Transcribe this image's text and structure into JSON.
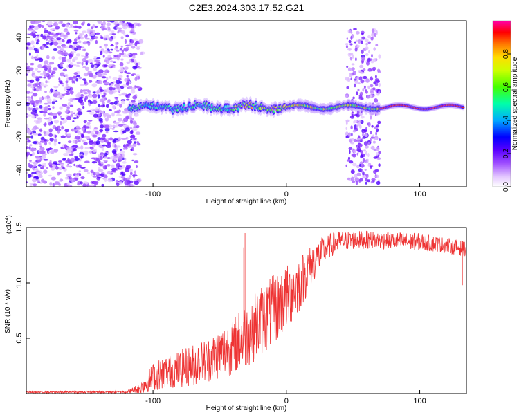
{
  "figure": {
    "title": "C2E3.2024.303.17.52.G21"
  },
  "chart_data": [
    {
      "type": "heatmap",
      "xlabel": "Height of straight line (km)",
      "ylabel": "Frequency (Hz)",
      "xlim": [
        -195,
        135
      ],
      "ylim": [
        -50,
        50
      ],
      "x_ticks": [
        -100,
        0,
        100
      ],
      "y_ticks": [
        -40,
        -20,
        0,
        20,
        40
      ],
      "colorbar": {
        "label": "Normalized spectral amplitude",
        "range": [
          0.0,
          1.0
        ],
        "ticks": [
          0.0,
          0.2,
          0.4,
          0.6,
          0.8
        ],
        "colors": [
          "#ffffff",
          "#b26bff",
          "#7a00ff",
          "#0000ff",
          "#00c8ff",
          "#00ff80",
          "#a0ff00",
          "#ffff00",
          "#ff8000",
          "#ff0000",
          "#ff00b0"
        ]
      },
      "description_regions": [
        {
          "x_range": [
            -195,
            -115
          ],
          "kind": "broadband noise",
          "freq_range": [
            -50,
            50
          ]
        },
        {
          "x_range": [
            -118,
            133
          ],
          "kind": "tone near 0 Hz",
          "center_freq": -2
        },
        {
          "x_range": [
            45,
            70
          ],
          "kind": "scattered noise",
          "freq_range": [
            -48,
            45
          ]
        }
      ],
      "grid": false
    },
    {
      "type": "line",
      "xlabel": "Height of straight line (km)",
      "ylabel": "SNR (10 * v/v)",
      "y_multiplier": "(x10",
      "y_multiplier_exponent": "4",
      "y_multiplier_close": ")",
      "xlim": [
        -195,
        135
      ],
      "ylim": [
        0,
        15000
      ],
      "x_ticks": [
        -100,
        0,
        100
      ],
      "y_ticks": [
        0.5,
        1.0,
        1.5
      ],
      "series": [
        {
          "color": "#ee3333",
          "envelope": {
            "x": [
              -195,
              -120,
              -110,
              -100,
              -90,
              -80,
              -70,
              -60,
              -50,
              -40,
              -30,
              -20,
              -10,
              0,
              10,
              20,
              30,
              40,
              60,
              80,
              100,
              120,
              133
            ],
            "mean": [
              120,
              150,
              450,
              1500,
              2000,
              2200,
              2600,
              3000,
              3600,
              4300,
              5300,
              6500,
              7500,
              8600,
              10000,
              11800,
              13200,
              13800,
              13900,
              13800,
              13700,
              13400,
              13100
            ],
            "spread": [
              80,
              100,
              500,
              1300,
              1500,
              1700,
              1900,
              2000,
              2300,
              2600,
              3000,
              3200,
              3200,
              3000,
              2600,
              1800,
              1200,
              900,
              800,
              800,
              800,
              700,
              700
            ]
          },
          "spikes": [
            {
              "x": -31,
              "y": 14500
            },
            {
              "x": -32,
              "y": 13200
            },
            {
              "x": 132,
              "y": 9800
            }
          ]
        }
      ],
      "grid": false
    }
  ]
}
